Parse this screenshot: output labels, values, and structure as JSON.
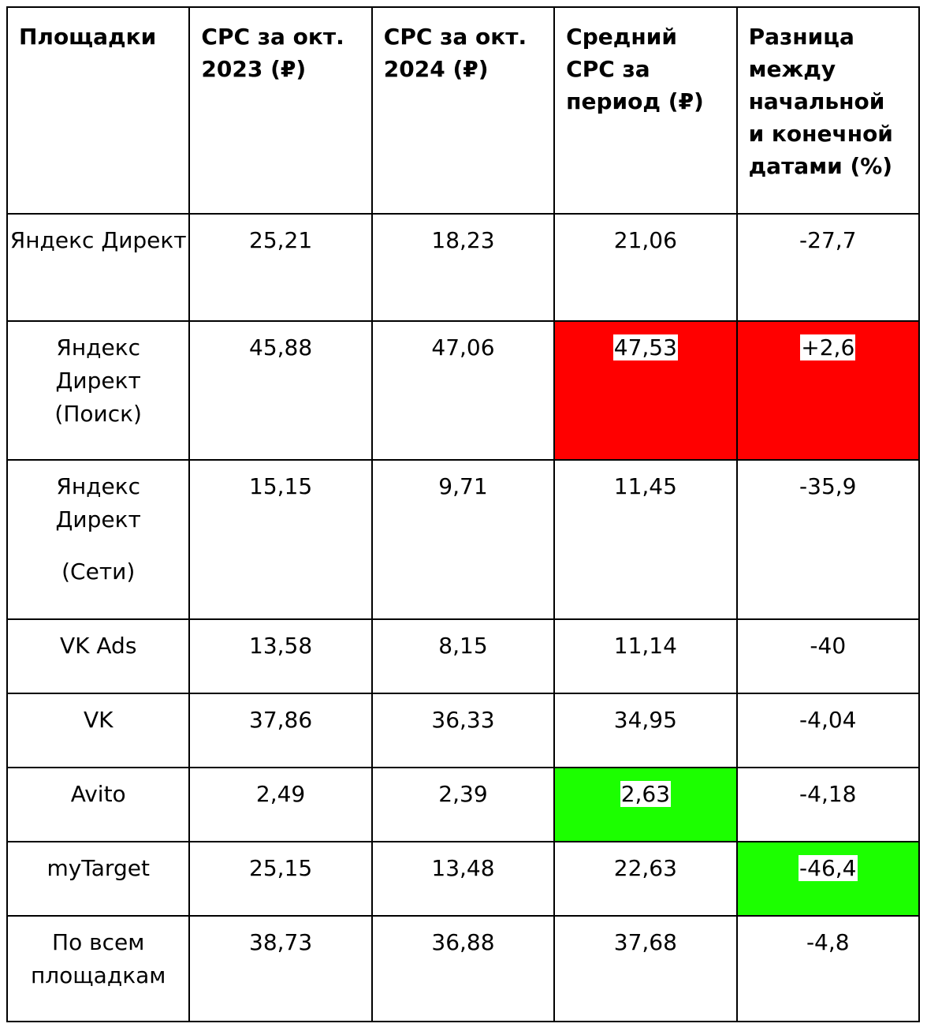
{
  "table": {
    "headers": [
      "Площадки",
      "CPC за окт. 2023 (₽)",
      "CPC за окт. 2024 (₽)",
      "Средний CPC за период (₽)",
      "Разница между начальной и конечной датами (%)"
    ],
    "rows": [
      {
        "platform": "Яндекс Директ",
        "cpc_2023": "25,21",
        "cpc_2024": "18,23",
        "avg_cpc": "21,06",
        "diff": "-27,7"
      },
      {
        "platform": "Яндекс Директ (Поиск)",
        "cpc_2023": "45,88",
        "cpc_2024": "47,06",
        "avg_cpc": "47,53",
        "diff": "+2,6"
      },
      {
        "platform": "Яндекс Директ",
        "platform_sub": "(Сети)",
        "cpc_2023": "15,15",
        "cpc_2024": "9,71",
        "avg_cpc": "11,45",
        "diff": "-35,9"
      },
      {
        "platform": "VK Ads",
        "cpc_2023": "13,58",
        "cpc_2024": "8,15",
        "avg_cpc": "11,14",
        "diff": "-40"
      },
      {
        "platform": "VK",
        "cpc_2023": "37,86",
        "cpc_2024": "36,33",
        "avg_cpc": "34,95",
        "diff": "-4,04"
      },
      {
        "platform": "Avito",
        "cpc_2023": "2,49",
        "cpc_2024": "2,39",
        "avg_cpc": "2,63",
        "diff": "-4,18"
      },
      {
        "platform": "myTarget",
        "cpc_2023": "25,15",
        "cpc_2024": "13,48",
        "avg_cpc": "22,63",
        "diff": "-46,4"
      },
      {
        "platform": "По всем площадкам",
        "cpc_2023": "38,73",
        "cpc_2024": "36,88",
        "avg_cpc": "37,68",
        "diff": "-4,8"
      }
    ]
  },
  "colors": {
    "highlight_red": "#ff0000",
    "highlight_green": "#1cff00"
  }
}
